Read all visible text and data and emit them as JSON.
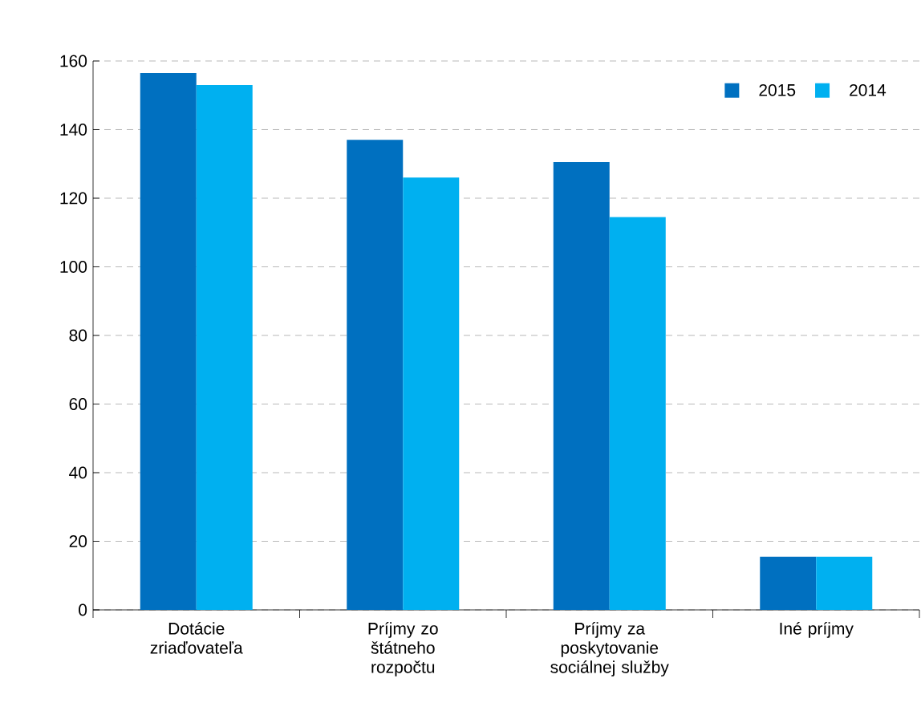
{
  "chart_data": {
    "type": "bar",
    "categories": [
      "Dotácie zriaďovateľa",
      "Príjmy zo štátneho rozpočtu",
      "Príjmy za poskytovanie sociálnej služby",
      "Iné príjmy"
    ],
    "series": [
      {
        "name": "2015",
        "color": "#0070c0",
        "values": [
          156.5,
          137,
          130.5,
          15.5
        ]
      },
      {
        "name": "2014",
        "color": "#00b0f0",
        "values": [
          153,
          126,
          114.5,
          15.5
        ]
      }
    ],
    "ylim": [
      0,
      160
    ],
    "yticks": [
      0,
      20,
      40,
      60,
      80,
      100,
      120,
      140,
      160
    ],
    "grid": "y",
    "legend": "top right"
  }
}
